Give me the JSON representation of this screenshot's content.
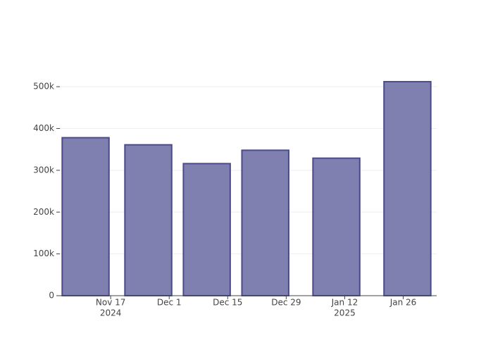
{
  "chart_data": {
    "type": "bar",
    "x": [
      "2024-11-11",
      "2024-11-26",
      "2024-12-10",
      "2024-12-24",
      "2025-01-10",
      "2025-01-27"
    ],
    "values": [
      378000,
      361000,
      316000,
      348000,
      329000,
      512000
    ],
    "color": "#7f7fb0",
    "edge_color": "#4b4b8c",
    "xlim": [
      "2024-11-04",
      "2025-02-03"
    ],
    "xticks": [
      {
        "value": "2024-11-17",
        "label": "Nov 17",
        "sublabel": "2024"
      },
      {
        "value": "2024-12-01",
        "label": "Dec 1"
      },
      {
        "value": "2024-12-15",
        "label": "Dec 15"
      },
      {
        "value": "2024-12-29",
        "label": "Dec 29"
      },
      {
        "value": "2025-01-12",
        "label": "Jan 12",
        "sublabel": "2025"
      },
      {
        "value": "2025-01-26",
        "label": "Jan 26"
      }
    ],
    "ylim": [
      0,
      539000
    ],
    "yticks": [
      0,
      {
        "value": 100000,
        "label": "100k"
      },
      {
        "value": 200000,
        "label": "200k"
      },
      {
        "value": 300000,
        "label": "300k"
      },
      {
        "value": 400000,
        "label": "400k"
      },
      {
        "value": 500000,
        "label": "500k"
      }
    ],
    "grid": true
  }
}
